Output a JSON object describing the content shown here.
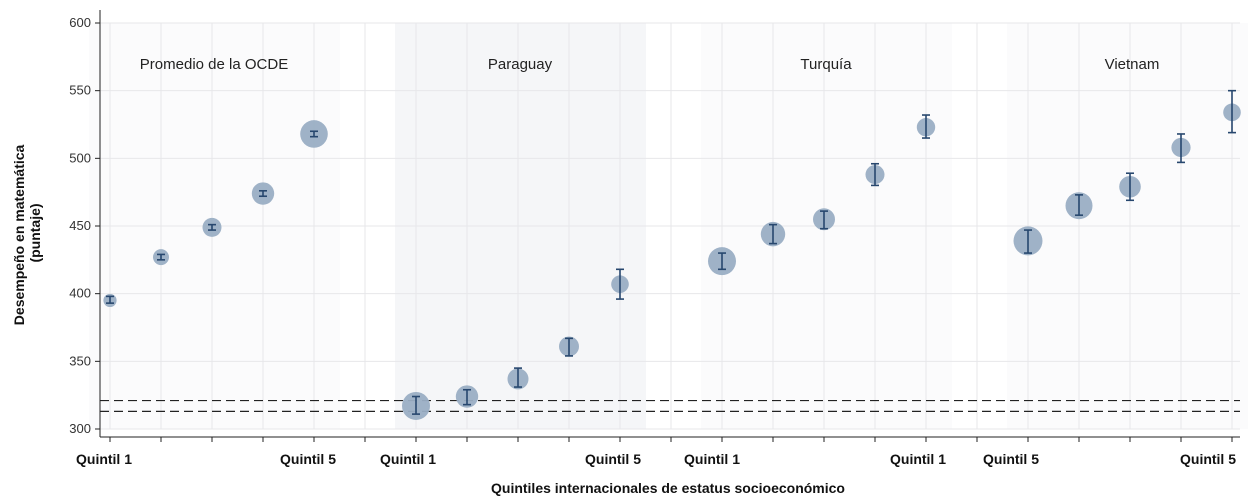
{
  "chart_data": {
    "type": "scatter",
    "title": "",
    "xlabel": "Quintiles internacionales de estatus socioeconómico",
    "ylabel": [
      "Desempeño en matemática",
      "(puntaje)"
    ],
    "ylim": [
      300,
      600
    ],
    "yticks": [
      300,
      350,
      400,
      450,
      500,
      550,
      600
    ],
    "grid": true,
    "reference_lines": [
      313,
      321
    ],
    "x_tick_labels": [
      "Quintil 1",
      "Quintil 5",
      "Quintil 1",
      "Quintil 5",
      "Quintil 1",
      "Quintil 1",
      "Quintil 5",
      "Quintil 5"
    ],
    "colors": {
      "marker": "#9aaec4",
      "errorbar": "#27476e",
      "shade": "#f5f6f8",
      "grid": "#e7e7ea"
    },
    "panels": [
      {
        "name": "Promedio de la OCDE",
        "shaded": false,
        "points": [
          {
            "value": 395,
            "low": 393,
            "high": 398,
            "size": 0.16
          },
          {
            "value": 427,
            "low": 425,
            "high": 429,
            "size": 0.3
          },
          {
            "value": 449,
            "low": 447,
            "high": 451,
            "size": 0.45
          },
          {
            "value": 474,
            "low": 472,
            "high": 476,
            "size": 0.62
          },
          {
            "value": 518,
            "low": 516,
            "high": 520,
            "size": 0.88
          }
        ]
      },
      {
        "name": "Paraguay",
        "shaded": true,
        "points": [
          {
            "value": 317,
            "low": 311,
            "high": 324,
            "size": 0.9
          },
          {
            "value": 324,
            "low": 318,
            "high": 329,
            "size": 0.62
          },
          {
            "value": 337,
            "low": 331,
            "high": 345,
            "size": 0.55
          },
          {
            "value": 361,
            "low": 354,
            "high": 367,
            "size": 0.5
          },
          {
            "value": 407,
            "low": 396,
            "high": 418,
            "size": 0.38
          }
        ]
      },
      {
        "name": "Turquía",
        "shaded": false,
        "points": [
          {
            "value": 424,
            "low": 418,
            "high": 430,
            "size": 0.9
          },
          {
            "value": 444,
            "low": 437,
            "high": 451,
            "size": 0.72
          },
          {
            "value": 455,
            "low": 448,
            "high": 461,
            "size": 0.6
          },
          {
            "value": 488,
            "low": 480,
            "high": 496,
            "size": 0.45
          },
          {
            "value": 523,
            "low": 515,
            "high": 532,
            "size": 0.42
          }
        ]
      },
      {
        "name": "Vietnam",
        "shaded": false,
        "points": [
          {
            "value": 439,
            "low": 430,
            "high": 447,
            "size": 0.95
          },
          {
            "value": 465,
            "low": 458,
            "high": 473,
            "size": 0.85
          },
          {
            "value": 479,
            "low": 469,
            "high": 489,
            "size": 0.58
          },
          {
            "value": 508,
            "low": 497,
            "high": 518,
            "size": 0.46
          },
          {
            "value": 534,
            "low": 519,
            "high": 550,
            "size": 0.38
          }
        ]
      }
    ]
  }
}
